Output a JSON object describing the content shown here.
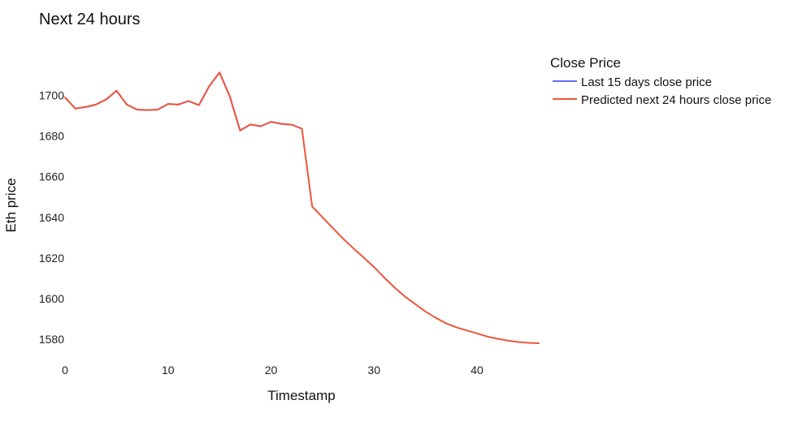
{
  "chart_data": {
    "type": "line",
    "title": "Next 24 hours",
    "xlabel": "Timestamp",
    "ylabel": "Eth price",
    "xlim": [
      0,
      46
    ],
    "ylim": [
      1572,
      1723
    ],
    "x_ticks": [
      0,
      10,
      20,
      30,
      40
    ],
    "y_ticks": [
      1580,
      1600,
      1620,
      1640,
      1660,
      1680,
      1700
    ],
    "grid": false,
    "legend": {
      "title": "Close Price",
      "placement": "top-right"
    },
    "series": [
      {
        "name": "Last 15 days close price",
        "color": "#636efa",
        "x": [
          0,
          1,
          2,
          3,
          4,
          5,
          6,
          7,
          8,
          9,
          10,
          11,
          12,
          13,
          14,
          15,
          16,
          17,
          18,
          19,
          20,
          21,
          22,
          23
        ],
        "y": [
          1699,
          1693.5,
          1694.3,
          1695.5,
          1698,
          1702.3,
          1695.5,
          1693,
          1692.8,
          1693,
          1695.8,
          1695.5,
          1697.2,
          1695.2,
          1704.5,
          1711.3,
          1699.5,
          1682.7,
          1685.7,
          1684.8,
          1687,
          1686,
          1685.6,
          1683.6
        ]
      },
      {
        "name": "Predicted next 24 hours close price",
        "color": "#ef553b",
        "x": [
          0,
          1,
          2,
          3,
          4,
          5,
          6,
          7,
          8,
          9,
          10,
          11,
          12,
          13,
          14,
          15,
          16,
          17,
          18,
          19,
          20,
          21,
          22,
          23,
          24,
          25,
          26,
          27,
          28,
          29,
          30,
          31,
          32,
          33,
          34,
          35,
          36,
          37,
          38,
          39,
          40,
          41,
          42,
          43,
          44,
          45,
          46
        ],
        "y": [
          1699,
          1693.5,
          1694.3,
          1695.5,
          1698,
          1702.3,
          1695.5,
          1693,
          1692.8,
          1693,
          1695.8,
          1695.5,
          1697.2,
          1695.2,
          1704.5,
          1711.3,
          1699.5,
          1682.7,
          1685.7,
          1684.8,
          1687,
          1686,
          1685.6,
          1683.6,
          1645.3,
          1640,
          1634.7,
          1629.5,
          1624.7,
          1620.2,
          1615.5,
          1610.3,
          1605.4,
          1601,
          1597.3,
          1593.6,
          1590.5,
          1587.8,
          1585.8,
          1584.3,
          1582.8,
          1581.3,
          1580.2,
          1579.3,
          1578.6,
          1578.2,
          1578
        ]
      }
    ]
  }
}
